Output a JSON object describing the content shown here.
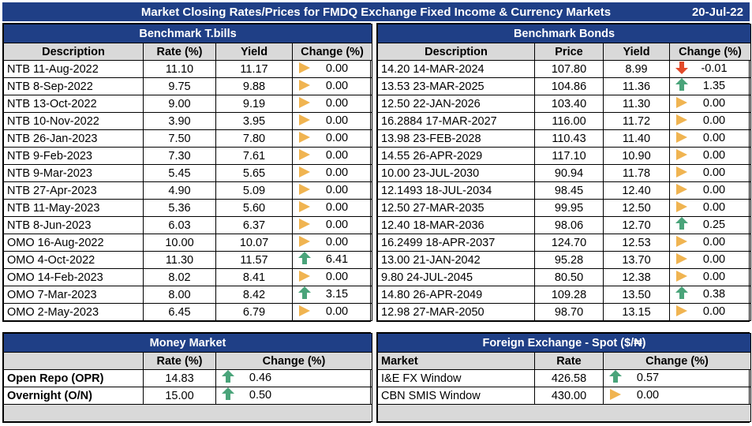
{
  "title": "Market Closing Rates/Prices for FMDQ Exchange Fixed Income & Currency Markets",
  "date": "20-Jul-22",
  "tbills": {
    "header": "Benchmark T.bills",
    "columns": [
      "Description",
      "Rate (%)",
      "Yield",
      "Change (%)"
    ],
    "rows": [
      {
        "desc": "NTB 11-Aug-2022",
        "rate": "11.10",
        "yield": "11.17",
        "dir": "flat",
        "change": "0.00"
      },
      {
        "desc": "NTB 8-Sep-2022",
        "rate": "9.75",
        "yield": "9.88",
        "dir": "flat",
        "change": "0.00"
      },
      {
        "desc": "NTB 13-Oct-2022",
        "rate": "9.00",
        "yield": "9.19",
        "dir": "flat",
        "change": "0.00"
      },
      {
        "desc": "NTB 10-Nov-2022",
        "rate": "3.90",
        "yield": "3.95",
        "dir": "flat",
        "change": "0.00"
      },
      {
        "desc": "NTB 26-Jan-2023",
        "rate": "7.50",
        "yield": "7.80",
        "dir": "flat",
        "change": "0.00"
      },
      {
        "desc": "NTB 9-Feb-2023",
        "rate": "7.30",
        "yield": "7.61",
        "dir": "flat",
        "change": "0.00"
      },
      {
        "desc": "NTB 9-Mar-2023",
        "rate": "5.45",
        "yield": "5.65",
        "dir": "flat",
        "change": "0.00"
      },
      {
        "desc": "NTB 27-Apr-2023",
        "rate": "4.90",
        "yield": "5.09",
        "dir": "flat",
        "change": "0.00"
      },
      {
        "desc": "NTB 11-May-2023",
        "rate": "5.36",
        "yield": "5.60",
        "dir": "flat",
        "change": "0.00"
      },
      {
        "desc": "NTB 8-Jun-2023",
        "rate": "6.03",
        "yield": "6.37",
        "dir": "flat",
        "change": "0.00"
      },
      {
        "desc": "OMO 16-Aug-2022",
        "rate": "10.00",
        "yield": "10.07",
        "dir": "flat",
        "change": "0.00"
      },
      {
        "desc": "OMO 4-Oct-2022",
        "rate": "11.30",
        "yield": "11.57",
        "dir": "up",
        "change": "6.41"
      },
      {
        "desc": "OMO 14-Feb-2023",
        "rate": "8.02",
        "yield": "8.41",
        "dir": "flat",
        "change": "0.00"
      },
      {
        "desc": "OMO 7-Mar-2023",
        "rate": "8.00",
        "yield": "8.42",
        "dir": "up",
        "change": "3.15"
      },
      {
        "desc": "OMO 2-May-2023",
        "rate": "6.45",
        "yield": "6.79",
        "dir": "flat",
        "change": "0.00"
      }
    ]
  },
  "bonds": {
    "header": "Benchmark Bonds",
    "columns": [
      "Description",
      "Price",
      "Yield",
      "Change (%)"
    ],
    "rows": [
      {
        "desc": "14.20 14-MAR-2024",
        "price": "107.80",
        "yield": "8.99",
        "dir": "down",
        "change": "-0.01"
      },
      {
        "desc": "13.53 23-MAR-2025",
        "price": "104.86",
        "yield": "11.36",
        "dir": "up",
        "change": "1.35"
      },
      {
        "desc": "12.50 22-JAN-2026",
        "price": "103.40",
        "yield": "11.30",
        "dir": "flat",
        "change": "0.00"
      },
      {
        "desc": "16.2884 17-MAR-2027",
        "price": "116.00",
        "yield": "11.72",
        "dir": "flat",
        "change": "0.00"
      },
      {
        "desc": "13.98 23-FEB-2028",
        "price": "110.43",
        "yield": "11.40",
        "dir": "flat",
        "change": "0.00"
      },
      {
        "desc": "14.55 26-APR-2029",
        "price": "117.10",
        "yield": "10.90",
        "dir": "flat",
        "change": "0.00"
      },
      {
        "desc": "10.00 23-JUL-2030",
        "price": "90.94",
        "yield": "11.78",
        "dir": "flat",
        "change": "0.00"
      },
      {
        "desc": "12.1493 18-JUL-2034",
        "price": "98.45",
        "yield": "12.40",
        "dir": "flat",
        "change": "0.00"
      },
      {
        "desc": "12.50 27-MAR-2035",
        "price": "99.95",
        "yield": "12.50",
        "dir": "flat",
        "change": "0.00"
      },
      {
        "desc": "12.40 18-MAR-2036",
        "price": "98.06",
        "yield": "12.70",
        "dir": "up",
        "change": "0.25"
      },
      {
        "desc": "16.2499 18-APR-2037",
        "price": "124.70",
        "yield": "12.53",
        "dir": "flat",
        "change": "0.00"
      },
      {
        "desc": "13.00 21-JAN-2042",
        "price": "95.28",
        "yield": "13.70",
        "dir": "flat",
        "change": "0.00"
      },
      {
        "desc": "9.80 24-JUL-2045",
        "price": "80.50",
        "yield": "12.38",
        "dir": "flat",
        "change": "0.00"
      },
      {
        "desc": "14.80 26-APR-2049",
        "price": "109.28",
        "yield": "13.50",
        "dir": "up",
        "change": "0.38"
      },
      {
        "desc": "12.98 27-MAR-2050",
        "price": "98.70",
        "yield": "13.15",
        "dir": "flat",
        "change": "0.00"
      }
    ]
  },
  "money": {
    "header": "Money Market",
    "columns": [
      "",
      "Rate (%)",
      "Change (%)"
    ],
    "rows": [
      {
        "desc": "Open Repo (OPR)",
        "rate": "14.83",
        "dir": "up",
        "change": "0.46"
      },
      {
        "desc": "Overnight (O/N)",
        "rate": "15.00",
        "dir": "up",
        "change": "0.50"
      }
    ]
  },
  "fx": {
    "header": "Foreign Exchange - Spot ($/₦)",
    "columns": [
      "Market",
      "Rate",
      "Change (%)"
    ],
    "rows": [
      {
        "desc": "I&E FX Window",
        "rate": "426.58",
        "dir": "up",
        "change": "0.57"
      },
      {
        "desc": "CBN SMIS Window",
        "rate": "430.00",
        "dir": "flat",
        "change": "0.00"
      }
    ]
  },
  "colors": {
    "header_bg": "#1f3f86",
    "subheader_bg": "#d9d9d9",
    "up": "#4aa47a",
    "down": "#e24a2a",
    "flat": "#f0b451"
  }
}
